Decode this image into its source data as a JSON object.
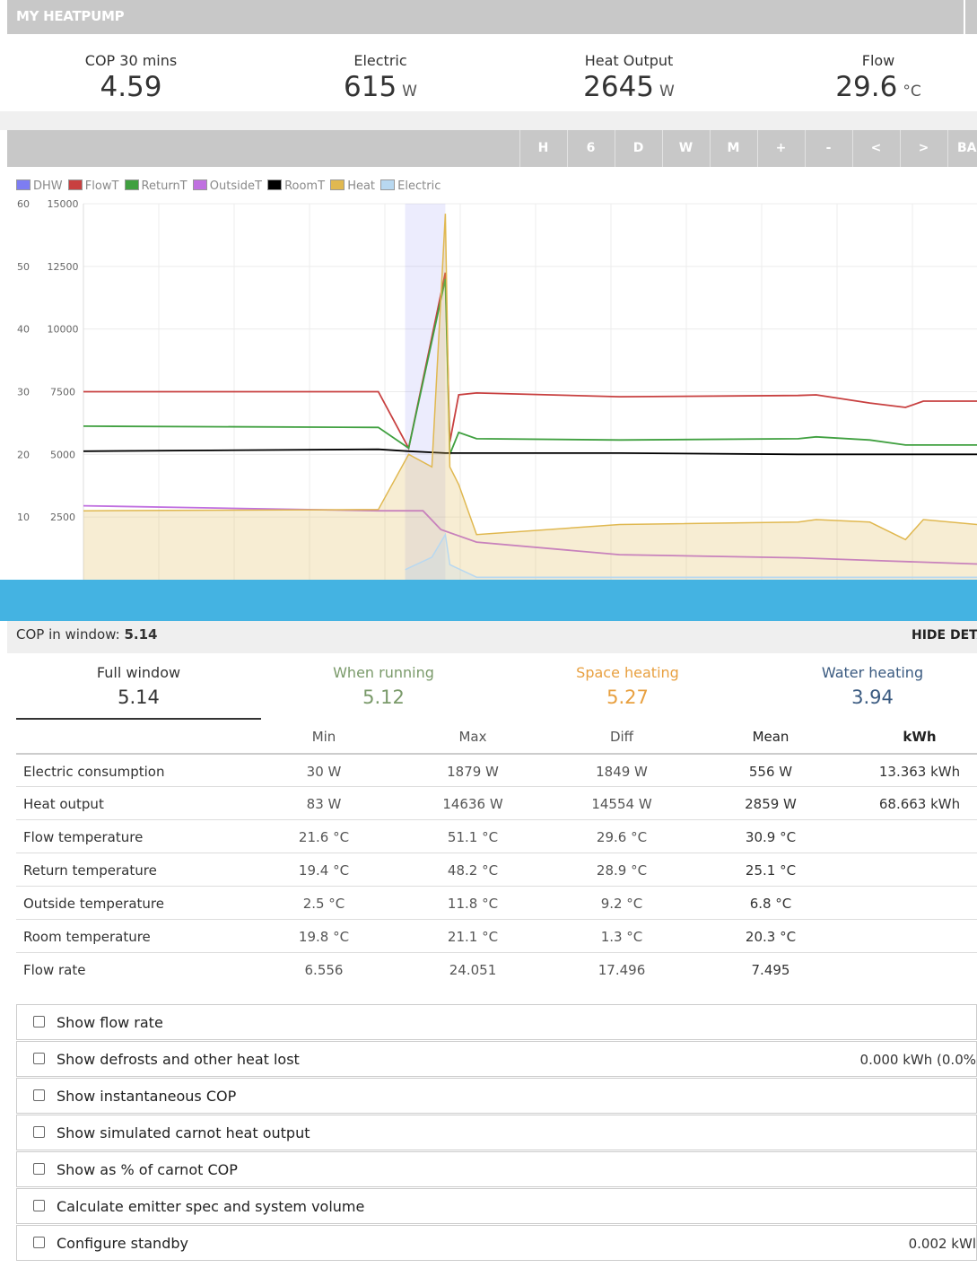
{
  "header": {
    "title": "MY HEATPUMP"
  },
  "stats": [
    {
      "label": "COP 30 mins",
      "value": "4.59",
      "unit": ""
    },
    {
      "label": "Electric",
      "value": "615",
      "unit": "W"
    },
    {
      "label": "Heat Output",
      "value": "2645",
      "unit": "W"
    },
    {
      "label": "Flow",
      "value": "29.6",
      "unit": "°C"
    }
  ],
  "toolbar": {
    "buttons": [
      "H",
      "6",
      "D",
      "W",
      "M",
      "+",
      "-",
      "<",
      ">",
      "BAC"
    ]
  },
  "chart_data": {
    "type": "line",
    "legend": [
      "DHW",
      "FlowT",
      "ReturnT",
      "OutsideT",
      "RoomT",
      "Heat",
      "Electric"
    ],
    "colors": [
      "#7d7df2",
      "#c84040",
      "#40a040",
      "#c070e0",
      "#000000",
      "#e0b850",
      "#b8d8f0"
    ],
    "y_left_ticks": [
      "60",
      "50",
      "40",
      "30",
      "20",
      "10"
    ],
    "y_right_ticks": [
      "15000",
      "12500",
      "10000",
      "7500",
      "5000",
      "2500"
    ],
    "ylim_left": [
      0,
      60
    ],
    "ylim_right": [
      0,
      15000
    ],
    "dhw_window": [
      0.36,
      0.405
    ],
    "series": [
      {
        "name": "FlowT",
        "values": [
          [
            0,
            30
          ],
          [
            0.33,
            30
          ],
          [
            0.364,
            21
          ],
          [
            0.405,
            49
          ],
          [
            0.41,
            22
          ],
          [
            0.42,
            29.5
          ],
          [
            0.44,
            29.8
          ],
          [
            0.6,
            29.2
          ],
          [
            0.8,
            29.4
          ],
          [
            0.82,
            29.5
          ],
          [
            0.88,
            28.2
          ],
          [
            0.92,
            27.5
          ],
          [
            0.94,
            28.5
          ],
          [
            1,
            28.5
          ]
        ]
      },
      {
        "name": "ReturnT",
        "values": [
          [
            0,
            24.5
          ],
          [
            0.33,
            24.3
          ],
          [
            0.364,
            21
          ],
          [
            0.405,
            48
          ],
          [
            0.41,
            20
          ],
          [
            0.42,
            23.5
          ],
          [
            0.44,
            22.5
          ],
          [
            0.6,
            22.3
          ],
          [
            0.8,
            22.5
          ],
          [
            0.82,
            22.8
          ],
          [
            0.88,
            22.3
          ],
          [
            0.92,
            21.5
          ],
          [
            1,
            21.5
          ]
        ]
      },
      {
        "name": "RoomT",
        "values": [
          [
            0,
            20.5
          ],
          [
            0.33,
            20.8
          ],
          [
            0.364,
            20.5
          ],
          [
            0.405,
            20.2
          ],
          [
            0.6,
            20.2
          ],
          [
            0.8,
            20
          ],
          [
            1,
            20
          ]
        ]
      },
      {
        "name": "OutsideT",
        "values": [
          [
            0,
            11.8
          ],
          [
            0.33,
            11
          ],
          [
            0.38,
            11
          ],
          [
            0.4,
            8
          ],
          [
            0.44,
            6
          ],
          [
            0.6,
            4
          ],
          [
            0.8,
            3.5
          ],
          [
            0.9,
            3
          ],
          [
            1,
            2.5
          ]
        ]
      },
      {
        "name": "Heat",
        "values": [
          [
            0,
            2750
          ],
          [
            0.33,
            2800
          ],
          [
            0.364,
            5000
          ],
          [
            0.39,
            4500
          ],
          [
            0.405,
            14600
          ],
          [
            0.41,
            4500
          ],
          [
            0.42,
            3800
          ],
          [
            0.44,
            1800
          ],
          [
            0.6,
            2200
          ],
          [
            0.8,
            2300
          ],
          [
            0.82,
            2400
          ],
          [
            0.88,
            2300
          ],
          [
            0.92,
            1600
          ],
          [
            0.94,
            2400
          ],
          [
            1,
            2200
          ]
        ]
      },
      {
        "name": "Electric",
        "values": [
          [
            0.36,
            400
          ],
          [
            0.39,
            900
          ],
          [
            0.405,
            1800
          ],
          [
            0.41,
            600
          ],
          [
            0.44,
            100
          ],
          [
            1,
            100
          ]
        ]
      }
    ]
  },
  "cop_bar": {
    "label": "COP in window:",
    "value": "5.14",
    "hide": "HIDE DETA"
  },
  "tabs": [
    {
      "label": "Full window",
      "value": "5.14",
      "color": "#333333"
    },
    {
      "label": "When running",
      "value": "5.12",
      "color": "#7a9a6a"
    },
    {
      "label": "Space heating",
      "value": "5.27",
      "color": "#e8a040"
    },
    {
      "label": "Water heating",
      "value": "3.94",
      "color": "#3a5a80"
    }
  ],
  "table": {
    "headers": [
      "Min",
      "Max",
      "Diff",
      "Mean",
      "kWh"
    ],
    "rows": [
      {
        "name": "Electric consumption",
        "cells": [
          "30 W",
          "1879 W",
          "1849 W",
          "556 W",
          "13.363 kWh"
        ]
      },
      {
        "name": "Heat output",
        "cells": [
          "83 W",
          "14636 W",
          "14554 W",
          "2859 W",
          "68.663 kWh"
        ]
      },
      {
        "name": "Flow temperature",
        "cells": [
          "21.6 °C",
          "51.1 °C",
          "29.6 °C",
          "30.9 °C",
          ""
        ]
      },
      {
        "name": "Return temperature",
        "cells": [
          "19.4 °C",
          "48.2 °C",
          "28.9 °C",
          "25.1 °C",
          ""
        ]
      },
      {
        "name": "Outside temperature",
        "cells": [
          "2.5 °C",
          "11.8 °C",
          "9.2 °C",
          "6.8 °C",
          ""
        ]
      },
      {
        "name": "Room temperature",
        "cells": [
          "19.8 °C",
          "21.1 °C",
          "1.3 °C",
          "20.3 °C",
          ""
        ]
      },
      {
        "name": "Flow rate",
        "cells": [
          "6.556",
          "24.051",
          "17.496",
          "7.495",
          ""
        ]
      }
    ]
  },
  "options": [
    {
      "label": "Show flow rate",
      "value": ""
    },
    {
      "label": "Show defrosts and other heat lost",
      "value": "0.000 kWh (0.0%"
    },
    {
      "label": "Show instantaneous COP",
      "value": ""
    },
    {
      "label": "Show simulated carnot heat output",
      "value": ""
    },
    {
      "label": "Show as % of carnot COP",
      "value": ""
    },
    {
      "label": "Calculate emitter spec and system volume",
      "value": ""
    },
    {
      "label": "Configure standby",
      "value": "0.002 kWl"
    }
  ]
}
